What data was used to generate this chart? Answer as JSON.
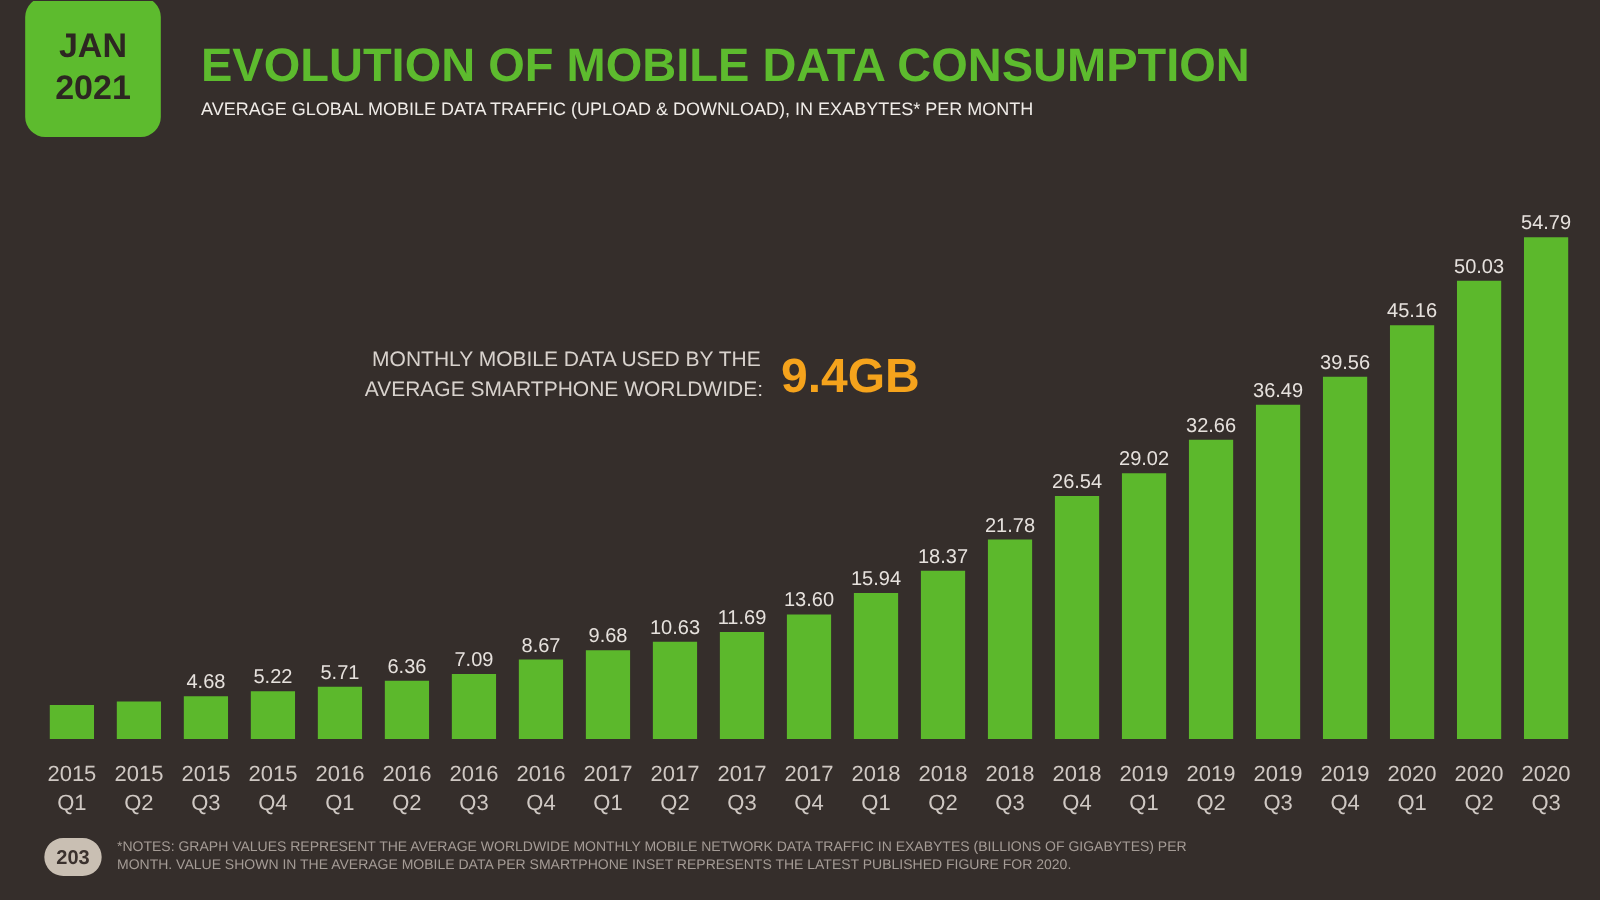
{
  "chart_data": {
    "type": "bar",
    "title": "EVOLUTION OF MOBILE DATA CONSUMPTION",
    "subtitle": "AVERAGE GLOBAL MOBILE DATA TRAFFIC (UPLOAD & DOWNLOAD), IN EXABYTES* PER MONTH",
    "categories": [
      "2015 Q1",
      "2015 Q2",
      "2015 Q3",
      "2015 Q4",
      "2016 Q1",
      "2016 Q2",
      "2016 Q3",
      "2016 Q4",
      "2017 Q1",
      "2017 Q2",
      "2017 Q3",
      "2017 Q4",
      "2018 Q1",
      "2018 Q2",
      "2018 Q3",
      "2018 Q4",
      "2019 Q1",
      "2019 Q2",
      "2019 Q3",
      "2019 Q4",
      "2020 Q1",
      "2020 Q2",
      "2020 Q3"
    ],
    "values": [
      3.7,
      4.1,
      4.68,
      5.22,
      5.71,
      6.36,
      7.09,
      8.67,
      9.68,
      10.63,
      11.69,
      13.6,
      15.94,
      18.37,
      21.78,
      26.54,
      29.02,
      32.66,
      36.49,
      39.56,
      45.16,
      50.03,
      54.79
    ],
    "value_labels": [
      null,
      null,
      "4.68",
      "5.22",
      "5.71",
      "6.36",
      "7.09",
      "8.67",
      "9.68",
      "10.63",
      "11.69",
      "13.60",
      "15.94",
      "18.37",
      "21.78",
      "26.54",
      "29.02",
      "32.66",
      "36.49",
      "39.56",
      "45.16",
      "50.03",
      "54.79"
    ],
    "color": "#5cb82c",
    "annotations": [
      "JAN 2021",
      "MONTHLY MOBILE DATA USED BY THE AVERAGE SMARTPHONE WORLDWIDE:",
      "9.4GB",
      "203",
      "*NOTES: GRAPH VALUES REPRESENT THE AVERAGE WORLDWIDE MONTHLY MOBILE NETWORK DATA TRAFFIC IN EXABYTES (BILLIONS OF GIGABYTES) PER MONTH. VALUE SHOWN IN THE AVERAGE MOBILE DATA PER SMARTPHONE INSET REPRESENTS THE LATEST PUBLISHED FIGURE FOR 2020."
    ]
  }
}
